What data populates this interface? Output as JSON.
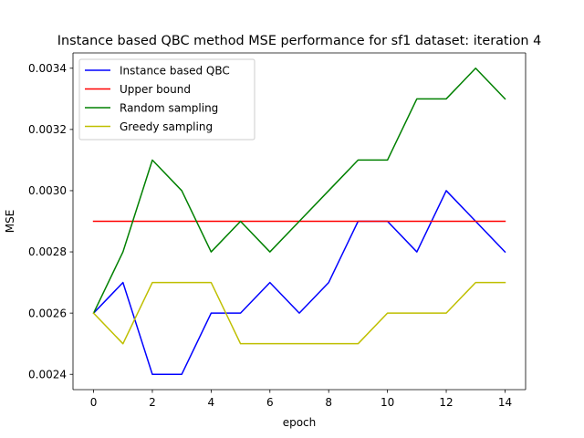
{
  "chart_data": {
    "type": "line",
    "title": "Instance based QBC method MSE performance for sf1 dataset: iteration 4",
    "xlabel": "epoch",
    "ylabel": "MSE",
    "x": [
      0,
      1,
      2,
      3,
      4,
      5,
      6,
      7,
      8,
      9,
      10,
      11,
      12,
      13,
      14
    ],
    "xlim": [
      -0.7,
      14.7
    ],
    "ylim": [
      0.00235,
      0.00345
    ],
    "xticks": [
      0,
      2,
      4,
      6,
      8,
      10,
      12,
      14
    ],
    "xtick_labels": [
      "0",
      "2",
      "4",
      "6",
      "8",
      "10",
      "12",
      "14"
    ],
    "yticks": [
      0.0024,
      0.0026,
      0.0028,
      0.003,
      0.0032,
      0.0034
    ],
    "ytick_labels": [
      "0.0024",
      "0.0026",
      "0.0028",
      "0.0030",
      "0.0032",
      "0.0034"
    ],
    "grid": false,
    "legend_position": "top-left",
    "series": [
      {
        "name": "Instance based QBC",
        "color": "#0000ff",
        "values": [
          0.0026,
          0.0027,
          0.0024,
          0.0024,
          0.0026,
          0.0026,
          0.0027,
          0.0026,
          0.0027,
          0.0029,
          0.0029,
          0.0028,
          0.003,
          0.0029,
          0.0028
        ]
      },
      {
        "name": "Upper bound",
        "color": "#ff0000",
        "values": [
          0.0029,
          0.0029,
          0.0029,
          0.0029,
          0.0029,
          0.0029,
          0.0029,
          0.0029,
          0.0029,
          0.0029,
          0.0029,
          0.0029,
          0.0029,
          0.0029,
          0.0029
        ]
      },
      {
        "name": "Random sampling",
        "color": "#008000",
        "values": [
          0.0026,
          0.0028,
          0.0031,
          0.003,
          0.0028,
          0.0029,
          0.0028,
          0.0029,
          0.003,
          0.0031,
          0.0031,
          0.0033,
          0.0033,
          0.0034,
          0.0033
        ]
      },
      {
        "name": "Greedy sampling",
        "color": "#bfbf00",
        "values": [
          0.0026,
          0.0025,
          0.0027,
          0.0027,
          0.0027,
          0.0025,
          0.0025,
          0.0025,
          0.0025,
          0.0025,
          0.0026,
          0.0026,
          0.0026,
          0.0027,
          0.0027
        ]
      }
    ]
  }
}
